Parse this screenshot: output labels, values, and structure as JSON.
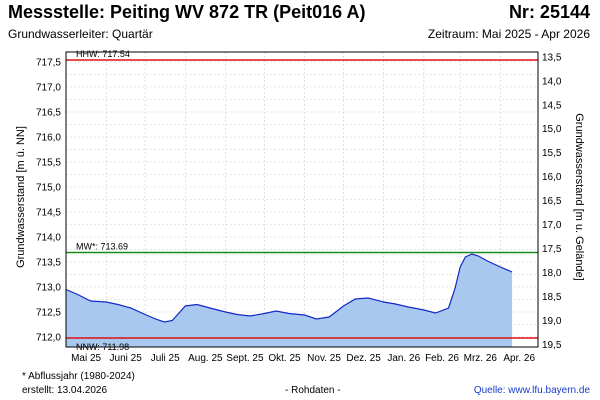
{
  "header": {
    "title": "Messstelle: Peiting WV 872 TR (Peit016 A)",
    "nr": "Nr: 25144",
    "subtitle_left": "Grundwasserleiter: Quartär",
    "subtitle_right": "Zeitraum: Mai 2025 - Apr 2026"
  },
  "footer": {
    "note": "* Abflussjahr (1980-2024)",
    "created": "erstellt:  13.04.2026",
    "raw": "- Rohdaten -",
    "source": "Quelle: www.lfu.bayern.de"
  },
  "colors": {
    "area_fill": "#a8c8f0",
    "line": "#1428c8",
    "hhw": "#e01010",
    "nnw": "#e01010",
    "mw": "#1a8a1a",
    "grid": "#cccccc"
  },
  "chart_data": {
    "type": "area",
    "ylabel": "Grundwasserstand [m ü. NN]",
    "y2label": "Grundwasserstand [m u. Gelände]",
    "ylim": [
      711.8,
      717.7
    ],
    "y2lim": [
      19.55,
      13.4
    ],
    "yticks": [
      "712,0",
      "712,5",
      "713,0",
      "713,5",
      "714,0",
      "714,5",
      "715,0",
      "715,5",
      "716,0",
      "716,5",
      "717,0",
      "717,5"
    ],
    "yticks_values": [
      712.0,
      712.5,
      713.0,
      713.5,
      714.0,
      714.5,
      715.0,
      715.5,
      716.0,
      716.5,
      717.0,
      717.5
    ],
    "y2ticks": [
      "13,5",
      "14,0",
      "14,5",
      "15,0",
      "15,5",
      "16,0",
      "16,5",
      "17,0",
      "17,5",
      "18,0",
      "18,5",
      "19,0",
      "19,5"
    ],
    "y2ticks_values": [
      13.5,
      14.0,
      14.5,
      15.0,
      15.5,
      16.0,
      16.5,
      17.0,
      17.5,
      18.0,
      18.5,
      19.0,
      19.5
    ],
    "xticks": [
      "Mai 25",
      "Juni 25",
      "Juli 25",
      "Aug. 25",
      "Sept. 25",
      "Okt. 25",
      "Nov. 25",
      "Dez. 25",
      "Jan. 26",
      "Feb. 26",
      "Mrz. 26",
      "Apr. 26"
    ],
    "xlim": [
      "2025-05-01",
      "2026-04-30"
    ],
    "grid": true,
    "reference_lines": [
      {
        "label": "HHW: 717.54",
        "value": 717.54,
        "color": "#e01010"
      },
      {
        "label": "MW*: 713.69",
        "value": 713.69,
        "color": "#1a8a1a"
      },
      {
        "label": "NNW: 711.98",
        "value": 711.98,
        "color": "#e01010"
      }
    ],
    "x": [
      "2025-05-01",
      "2025-05-10",
      "2025-05-20",
      "2025-06-01",
      "2025-06-10",
      "2025-06-20",
      "2025-07-01",
      "2025-07-10",
      "2025-07-16",
      "2025-07-22",
      "2025-08-01",
      "2025-08-10",
      "2025-08-20",
      "2025-09-01",
      "2025-09-10",
      "2025-09-20",
      "2025-10-01",
      "2025-10-10",
      "2025-10-20",
      "2025-11-01",
      "2025-11-10",
      "2025-11-20",
      "2025-12-01",
      "2025-12-10",
      "2025-12-20",
      "2026-01-01",
      "2026-01-10",
      "2026-01-20",
      "2026-02-01",
      "2026-02-10",
      "2026-02-20",
      "2026-02-25",
      "2026-03-01",
      "2026-03-05",
      "2026-03-10",
      "2026-03-15",
      "2026-03-22",
      "2026-04-01",
      "2026-04-10"
    ],
    "values": [
      712.95,
      712.85,
      712.72,
      712.7,
      712.65,
      712.58,
      712.45,
      712.35,
      712.3,
      712.33,
      712.62,
      712.65,
      712.58,
      712.5,
      712.45,
      712.42,
      712.47,
      712.52,
      712.47,
      712.44,
      712.36,
      712.4,
      712.62,
      712.76,
      712.78,
      712.7,
      712.66,
      712.6,
      712.54,
      712.48,
      712.58,
      712.97,
      713.4,
      713.6,
      713.66,
      713.62,
      713.52,
      713.4,
      713.3
    ]
  }
}
